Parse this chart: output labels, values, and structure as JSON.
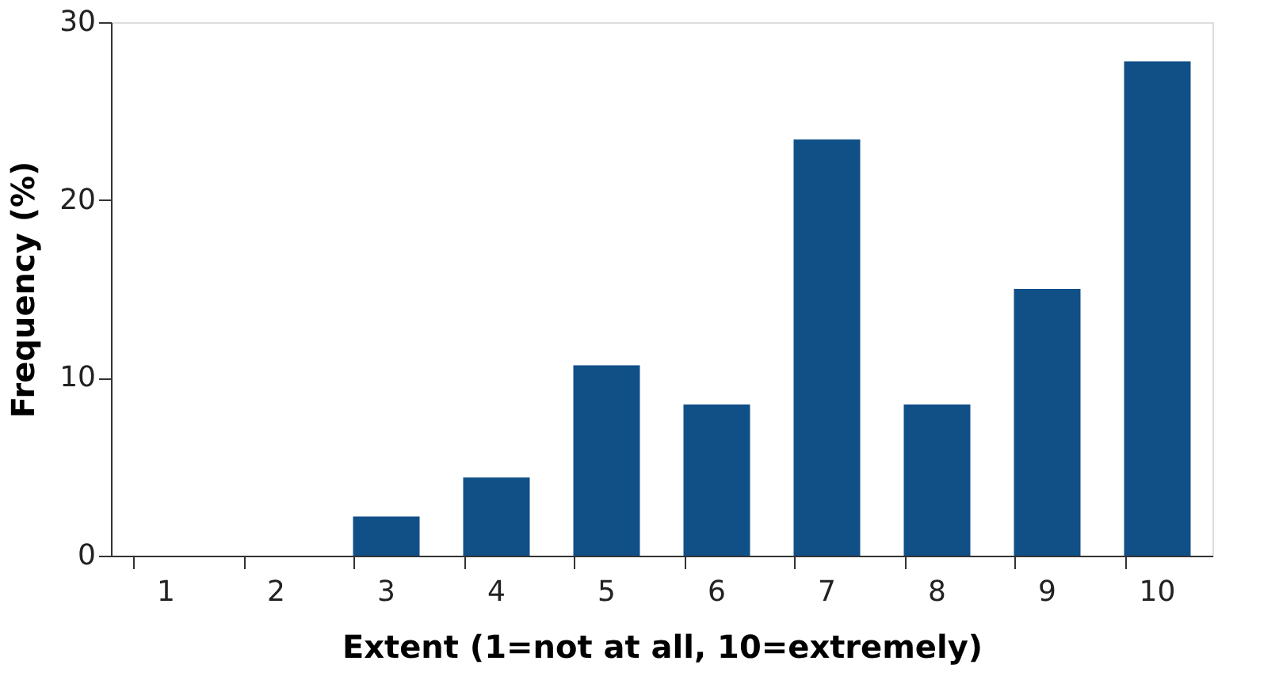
{
  "chart_data": {
    "type": "bar",
    "xlabel": "Extent (1=not at all, 10=extremely)",
    "ylabel": "Frequency (%)",
    "categories": [
      "1",
      "2",
      "3",
      "4",
      "5",
      "6",
      "7",
      "8",
      "9",
      "10"
    ],
    "values": [
      0,
      0,
      2.2,
      4.4,
      10.7,
      8.5,
      23.4,
      8.5,
      15.0,
      27.8
    ],
    "color": "#114f87",
    "ylim": [
      0,
      30
    ],
    "yticks": [
      0,
      10,
      20,
      30
    ],
    "grid": false
  }
}
